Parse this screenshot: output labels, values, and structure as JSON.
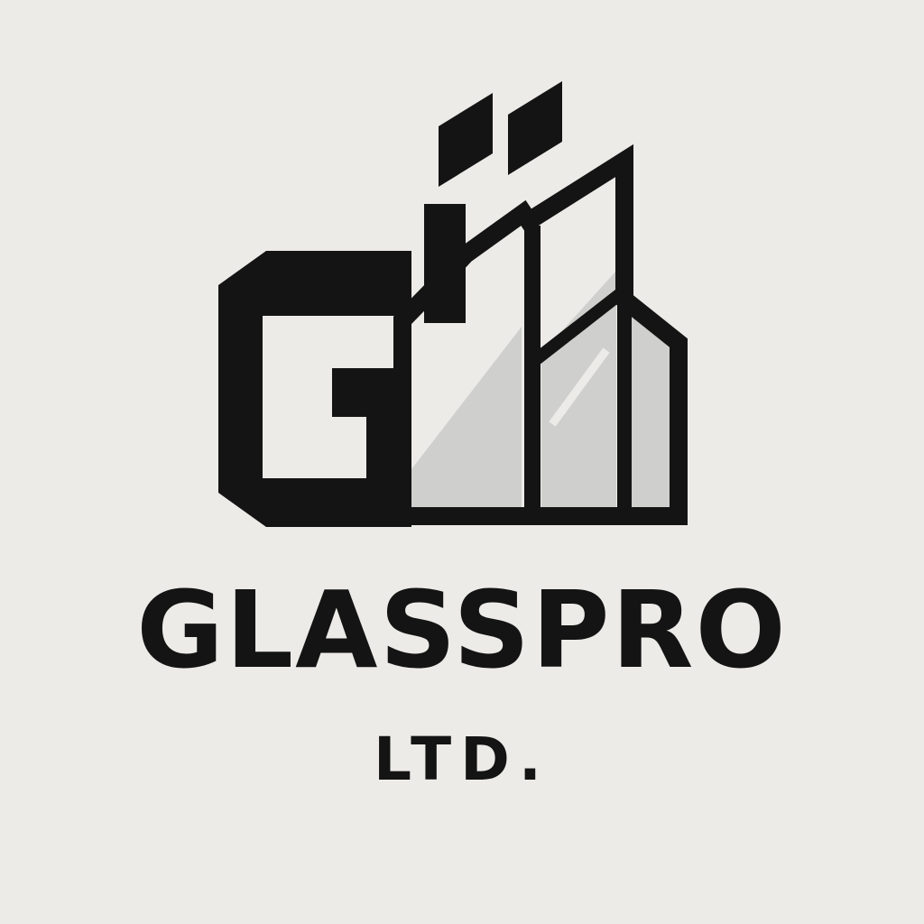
{
  "logo": {
    "name": "GLASSPRO",
    "suffix": "LTD.",
    "colors": {
      "background": "#ecebe8",
      "ink": "#141414",
      "glass": "#cfcfcd"
    },
    "icon": "glass-factory-icon"
  }
}
